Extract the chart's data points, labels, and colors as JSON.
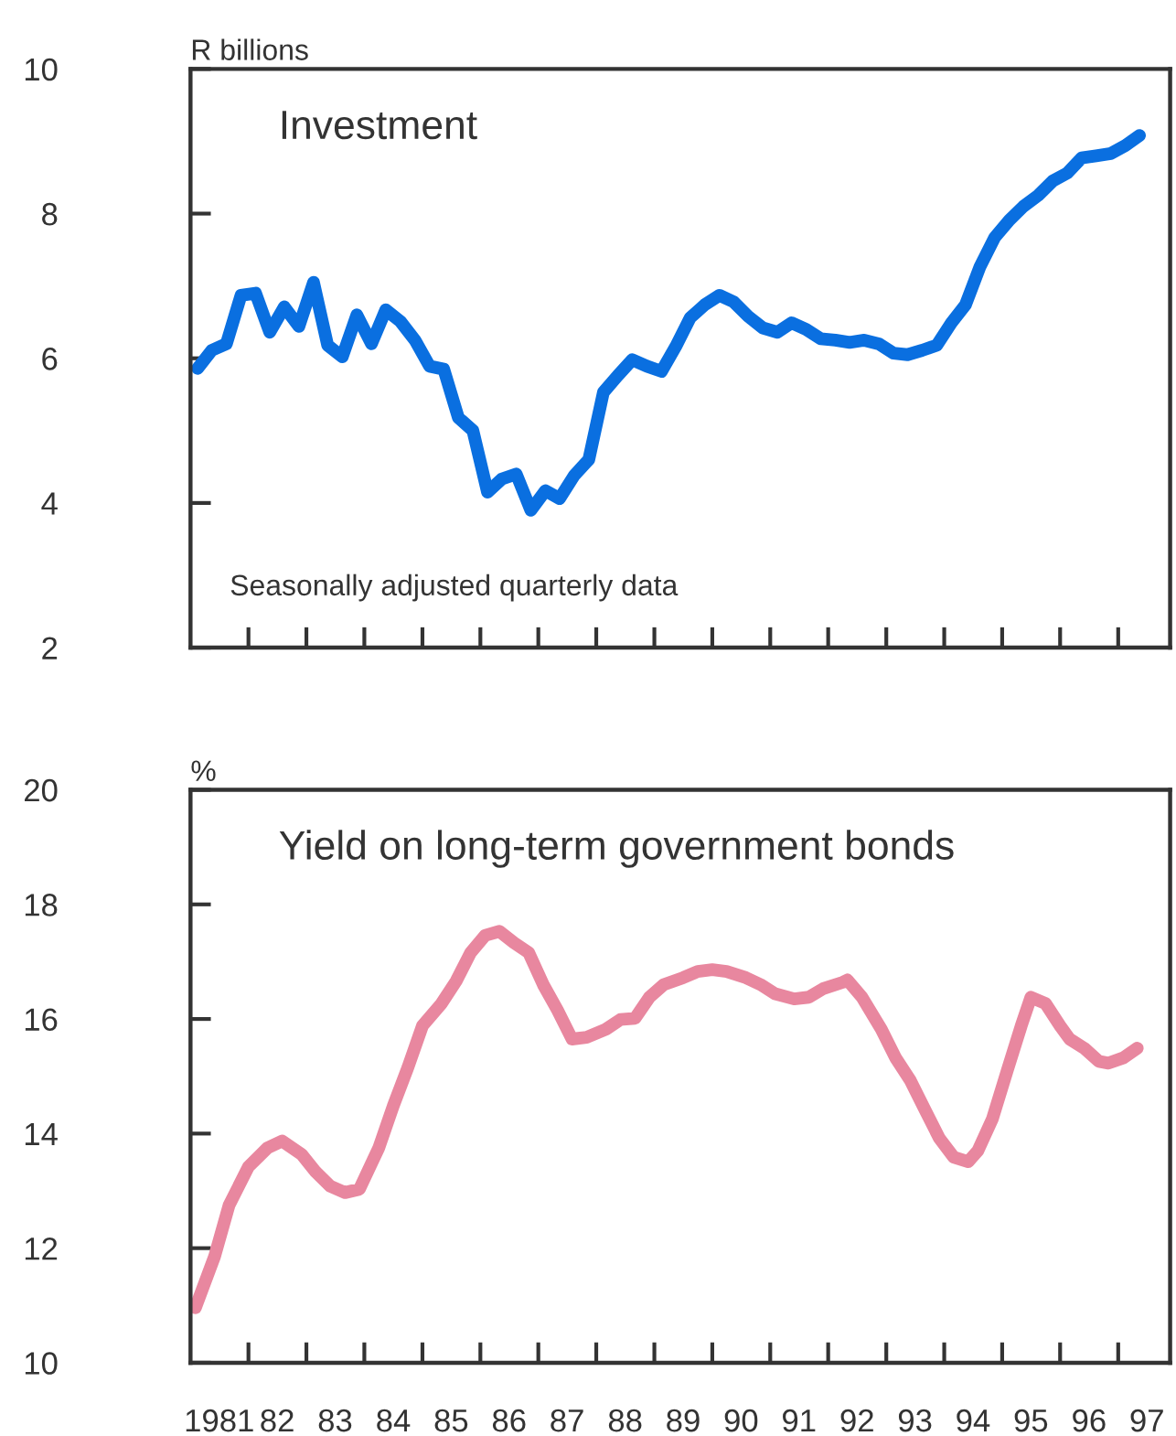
{
  "chart_data": [
    {
      "type": "line",
      "title": "Investment",
      "ylabel": "R billions",
      "annotations": [
        "Seasonally adjusted quarterly data"
      ],
      "xlim": [
        "1981-01-01",
        "1997-11-24"
      ],
      "ylim": [
        2,
        10
      ],
      "yticks": [
        2,
        4,
        6,
        8,
        10
      ],
      "tick_labels": "y",
      "grid": false,
      "xticks": [
        {
          "value": "1982-01-01",
          "label": null
        },
        {
          "value": "1983-01-01",
          "label": null
        },
        {
          "value": "1984-01-01",
          "label": null
        },
        {
          "value": "1985-01-01",
          "label": null
        },
        {
          "value": "1986-01-01",
          "label": null
        },
        {
          "value": "1987-01-01",
          "label": null
        },
        {
          "value": "1988-01-01",
          "label": null
        },
        {
          "value": "1989-01-01",
          "label": null
        },
        {
          "value": "1990-01-01",
          "label": null
        },
        {
          "value": "1991-01-01",
          "label": null
        },
        {
          "value": "1992-01-01",
          "label": null
        },
        {
          "value": "1993-01-01",
          "label": null
        },
        {
          "value": "1994-01-01",
          "label": null
        },
        {
          "value": "1995-01-01",
          "label": null
        },
        {
          "value": "1996-01-01",
          "label": null
        },
        {
          "value": "1997-01-01",
          "label": null
        }
      ],
      "series": [
        {
          "color": "#0a6fe0",
          "line_style": "solid",
          "marker": "none",
          "x": [
            "1981-02-15",
            "1981-05-15",
            "1981-08-15",
            "1981-11-15",
            "1982-02-15",
            "1982-05-15",
            "1982-08-15",
            "1982-11-15",
            "1983-02-15",
            "1983-05-15",
            "1983-08-15",
            "1983-11-15",
            "1984-02-15",
            "1984-05-15",
            "1984-08-15",
            "1984-11-15",
            "1985-02-15",
            "1985-05-15",
            "1985-08-15",
            "1985-11-15",
            "1986-02-15",
            "1986-05-15",
            "1986-08-15",
            "1986-11-15",
            "1987-02-15",
            "1987-05-15",
            "1987-08-15",
            "1987-11-15",
            "1988-02-15",
            "1988-05-15",
            "1988-08-15",
            "1988-11-15",
            "1989-02-15",
            "1989-05-15",
            "1989-08-15",
            "1989-11-15",
            "1990-02-15",
            "1990-05-15",
            "1990-08-15",
            "1990-11-15",
            "1991-02-15",
            "1991-05-15",
            "1991-08-15",
            "1991-11-15",
            "1992-02-15",
            "1992-05-15",
            "1992-08-15",
            "1992-11-15",
            "1993-02-15",
            "1993-05-15",
            "1993-08-15",
            "1993-11-15",
            "1994-02-15",
            "1994-05-15",
            "1994-08-15",
            "1994-11-15",
            "1995-02-15",
            "1995-05-15",
            "1995-08-15",
            "1995-11-15",
            "1996-02-15",
            "1996-05-15",
            "1996-08-15",
            "1996-11-15",
            "1997-02-15",
            "1997-05-15"
          ],
          "values": [
            5.86,
            6.11,
            6.2,
            6.87,
            6.9,
            6.36,
            6.71,
            6.44,
            7.05,
            6.18,
            6.02,
            6.6,
            6.2,
            6.67,
            6.51,
            6.25,
            5.89,
            5.85,
            5.18,
            5.0,
            4.15,
            4.33,
            4.4,
            3.9,
            4.17,
            4.06,
            4.38,
            4.6,
            5.53,
            5.76,
            5.98,
            5.89,
            5.82,
            6.16,
            6.56,
            6.74,
            6.87,
            6.78,
            6.58,
            6.42,
            6.36,
            6.49,
            6.4,
            6.27,
            6.25,
            6.22,
            6.25,
            6.2,
            6.07,
            6.05,
            6.11,
            6.18,
            6.49,
            6.74,
            7.27,
            7.67,
            7.91,
            8.1,
            8.25,
            8.45,
            8.56,
            8.77,
            8.8,
            8.83,
            8.94,
            9.08
          ]
        }
      ]
    },
    {
      "type": "line",
      "title": "Yield on long-term government bonds",
      "ylabel": "%",
      "xlim": [
        "1981-01-01",
        "1997-11-24"
      ],
      "ylim": [
        10,
        20
      ],
      "yticks": [
        10,
        12,
        14,
        16,
        18,
        20
      ],
      "grid": false,
      "xticks": [
        {
          "value": "1981-07-01",
          "label": "1981"
        },
        {
          "value": "1982-01-01",
          "label": null
        },
        {
          "value": "1982-07-01",
          "label": "82"
        },
        {
          "value": "1983-01-01",
          "label": null
        },
        {
          "value": "1983-07-01",
          "label": "83"
        },
        {
          "value": "1984-01-01",
          "label": null
        },
        {
          "value": "1984-07-01",
          "label": "84"
        },
        {
          "value": "1985-01-01",
          "label": null
        },
        {
          "value": "1985-07-01",
          "label": "85"
        },
        {
          "value": "1986-01-01",
          "label": null
        },
        {
          "value": "1986-07-01",
          "label": "86"
        },
        {
          "value": "1987-01-01",
          "label": null
        },
        {
          "value": "1987-07-01",
          "label": "87"
        },
        {
          "value": "1988-01-01",
          "label": null
        },
        {
          "value": "1988-07-01",
          "label": "88"
        },
        {
          "value": "1989-01-01",
          "label": null
        },
        {
          "value": "1989-07-01",
          "label": "89"
        },
        {
          "value": "1990-01-01",
          "label": null
        },
        {
          "value": "1990-07-01",
          "label": "90"
        },
        {
          "value": "1991-01-01",
          "label": null
        },
        {
          "value": "1991-07-01",
          "label": "91"
        },
        {
          "value": "1992-01-01",
          "label": null
        },
        {
          "value": "1992-07-01",
          "label": "92"
        },
        {
          "value": "1993-01-01",
          "label": null
        },
        {
          "value": "1993-07-01",
          "label": "93"
        },
        {
          "value": "1994-01-01",
          "label": null
        },
        {
          "value": "1994-07-01",
          "label": "94"
        },
        {
          "value": "1995-01-01",
          "label": null
        },
        {
          "value": "1995-07-01",
          "label": "95"
        },
        {
          "value": "1996-01-01",
          "label": null
        },
        {
          "value": "1996-07-01",
          "label": "96"
        },
        {
          "value": "1997-01-01",
          "label": null
        },
        {
          "value": "1997-07-01",
          "label": "97"
        }
      ],
      "series": [
        {
          "color": "#e8879f",
          "line_style": "solid",
          "marker": "none",
          "x": [
            "1981-02",
            "1981-06",
            "1981-09",
            "1982-01",
            "1982-05",
            "1982-08",
            "1982-12",
            "1983-03",
            "1983-06",
            "1983-09",
            "1983-12",
            "1984-04",
            "1984-07",
            "1984-10",
            "1985-01",
            "1985-05",
            "1985-08",
            "1985-11",
            "1986-02",
            "1986-05",
            "1986-08",
            "1986-11",
            "1987-02",
            "1987-05",
            "1987-08",
            "1987-11",
            "1988-03",
            "1988-06",
            "1988-09",
            "1988-12",
            "1989-03",
            "1989-07",
            "1989-10",
            "1990-01",
            "1990-04",
            "1990-08",
            "1990-11",
            "1991-02",
            "1991-06",
            "1991-09",
            "1991-12",
            "1992-04",
            "1992-05",
            "1992-08",
            "1992-12",
            "1993-03",
            "1993-06",
            "1993-09",
            "1993-12",
            "1994-03",
            "1994-06",
            "1994-08",
            "1994-11",
            "1995-02",
            "1995-05",
            "1995-07",
            "1995-10",
            "1996-01",
            "1996-03",
            "1996-06",
            "1996-09",
            "1996-11",
            "1997-02",
            "1997-05"
          ],
          "values": [
            10.96,
            11.85,
            12.75,
            13.42,
            13.75,
            13.87,
            13.64,
            13.33,
            13.08,
            12.97,
            13.03,
            13.75,
            14.48,
            15.15,
            15.88,
            16.27,
            16.66,
            17.16,
            17.46,
            17.53,
            17.33,
            17.16,
            16.6,
            16.16,
            15.65,
            15.68,
            15.82,
            15.99,
            16.01,
            16.38,
            16.6,
            16.72,
            16.83,
            16.86,
            16.83,
            16.72,
            16.6,
            16.44,
            16.35,
            16.38,
            16.53,
            16.64,
            16.68,
            16.38,
            15.82,
            15.32,
            14.93,
            14.42,
            13.92,
            13.59,
            13.51,
            13.7,
            14.26,
            15.09,
            15.88,
            16.38,
            16.27,
            15.88,
            15.65,
            15.49,
            15.26,
            15.23,
            15.32,
            15.49
          ]
        }
      ]
    }
  ]
}
